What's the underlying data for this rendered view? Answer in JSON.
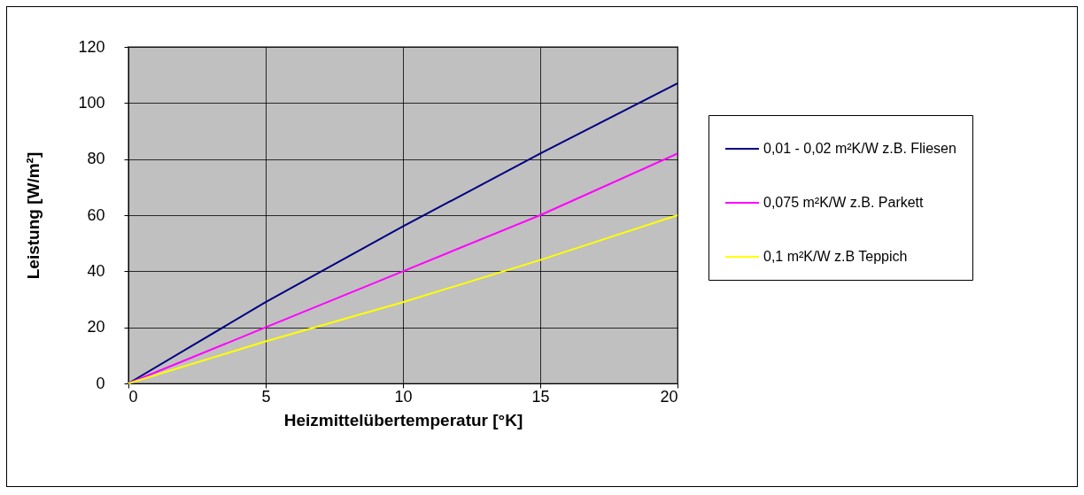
{
  "chart_data": {
    "type": "line",
    "xlabel": "Heizmittelübertemperatur [°K]",
    "ylabel": "Leistung [W/m²]",
    "x": [
      0,
      5,
      10,
      15,
      20
    ],
    "series": [
      {
        "name": "0,01 - 0,02 m²K/W z.B. Fliesen",
        "color": "#000080",
        "values": [
          0,
          29,
          56,
          82,
          107
        ]
      },
      {
        "name": "0,075 m²K/W z.B. Parkett",
        "color": "#ff00ff",
        "values": [
          0,
          20,
          40,
          60,
          82
        ]
      },
      {
        "name": "0,1 m²K/W z.B Teppich",
        "color": "#ffff00",
        "values": [
          0,
          15,
          29,
          44,
          60
        ]
      }
    ],
    "xlim": [
      0,
      20
    ],
    "xticks": [
      0,
      5,
      10,
      15,
      20
    ],
    "ylim": [
      0,
      120
    ],
    "yticks": [
      0,
      20,
      40,
      60,
      80,
      100,
      120
    ],
    "grid": true,
    "legend": "right",
    "marker": "none",
    "line_style": "solid"
  }
}
